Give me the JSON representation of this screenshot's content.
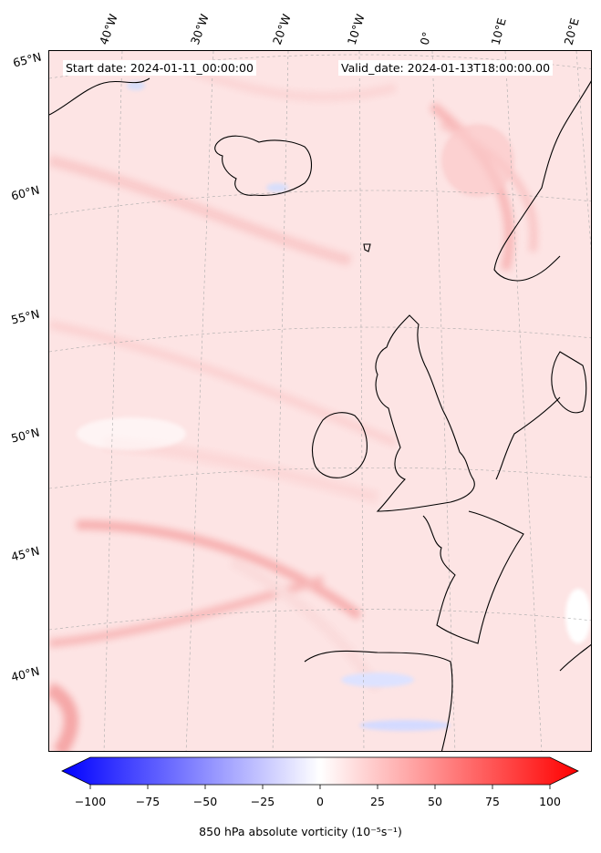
{
  "header": {
    "start_date": "Start date: 2024-01-11_00:00:00",
    "valid_date": "Valid_date: 2024-01-13T18:00:00.00"
  },
  "map": {
    "projection": "conic",
    "land_outline_color": "#000000",
    "gridline_style": "dashed-grey",
    "longitude_labels": [
      "40°W",
      "30°W",
      "20°W",
      "10°W",
      "0°",
      "10°E",
      "20°E"
    ],
    "latitude_labels": [
      "65°N",
      "60°N",
      "55°N",
      "50°N",
      "45°N",
      "40°N"
    ]
  },
  "colorbar": {
    "min": -100,
    "max": 100,
    "ticks": [
      "−100",
      "−75",
      "−50",
      "−25",
      "0",
      "25",
      "50",
      "75",
      "100"
    ],
    "low_color": "#0000ff",
    "mid_color": "#ffffff",
    "high_color": "#ff0000",
    "extend": "both",
    "label": "850 hPa absolute vorticity (10⁻⁵s⁻¹)"
  }
}
